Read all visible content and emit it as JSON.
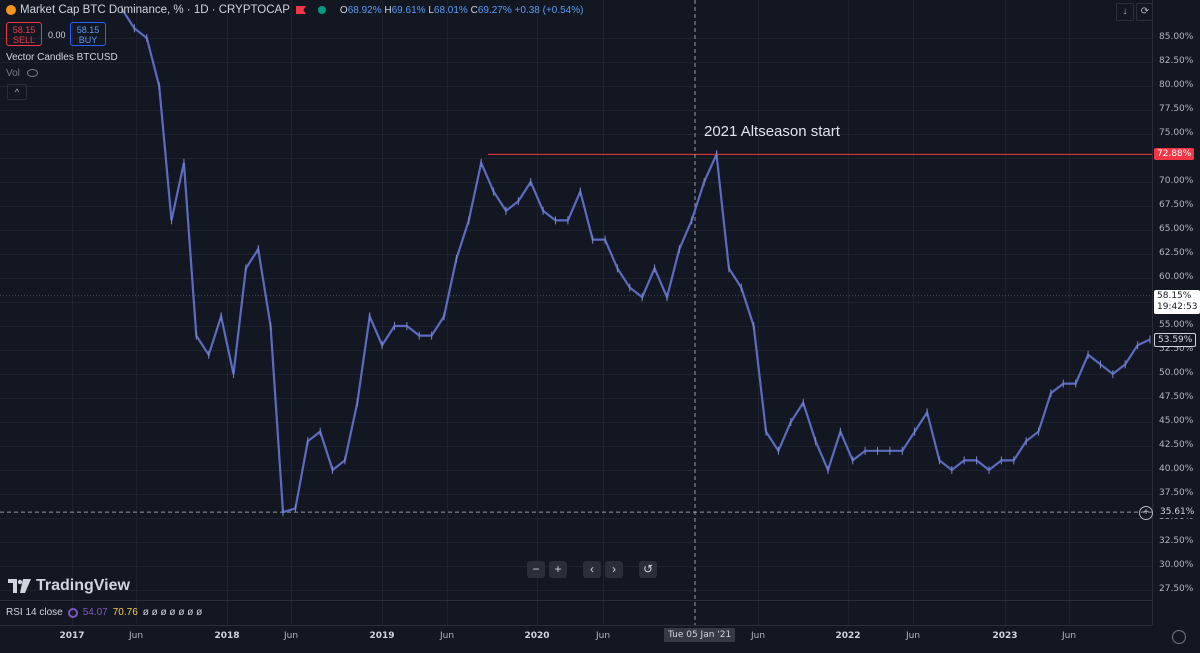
{
  "header": {
    "title": "Market Cap BTC Dominance, % · 1D · CRYPTOCAP",
    "ohlc": {
      "o_label": "O",
      "o_value": "68.92%",
      "h_label": "H",
      "h_value": "69.61%",
      "l_label": "L",
      "l_value": "68.01%",
      "c_label": "C",
      "c_value": "69.27%",
      "change": "+0.38 (+0.54%)"
    }
  },
  "trade": {
    "sell_price": "58.15",
    "sell_label": "SELL",
    "buy_price": "58.15",
    "buy_label": "BUY",
    "spread": "0.00"
  },
  "indicators": {
    "vector": "Vector Candles BTCUSD",
    "vol": "Vol",
    "collapse": "^"
  },
  "toolbar": {
    "down_icon": "arrow-down-icon",
    "refresh_icon": "refresh-icon",
    "scale_label": "%"
  },
  "price_axis": {
    "ticks": [
      "85.00%",
      "82.50%",
      "80.00%",
      "77.50%",
      "75.00%",
      "72.50%",
      "70.00%",
      "67.50%",
      "65.00%",
      "62.50%",
      "60.00%",
      "57.50%",
      "55.00%",
      "52.50%",
      "50.00%",
      "47.50%",
      "45.00%",
      "42.50%",
      "40.00%",
      "37.50%",
      "35.00%",
      "32.50%",
      "30.00%",
      "27.50%"
    ],
    "high_label": "72.88%",
    "current_price": "58.15%",
    "countdown": "19:42:53",
    "close_label": "53.59%",
    "crosshair_label": "35.61%"
  },
  "time_axis": {
    "ticks": [
      {
        "label": "2017",
        "bold": true
      },
      {
        "label": "Jun",
        "bold": false
      },
      {
        "label": "2018",
        "bold": true
      },
      {
        "label": "Jun",
        "bold": false
      },
      {
        "label": "2019",
        "bold": true
      },
      {
        "label": "Jun",
        "bold": false
      },
      {
        "label": "2020",
        "bold": true
      },
      {
        "label": "Jun",
        "bold": false
      },
      {
        "label": "Jun",
        "bold": false
      },
      {
        "label": "2022",
        "bold": true
      },
      {
        "label": "Jun",
        "bold": false
      },
      {
        "label": "2023",
        "bold": true
      },
      {
        "label": "Jun",
        "bold": false
      }
    ],
    "crosshair_date": "Tue 05 Jan '21"
  },
  "annotation": "2021 Altseason start",
  "navigation": {
    "zoom_out": "−",
    "zoom_in": "+",
    "scroll_left": "‹",
    "scroll_right": "›",
    "reset": "↺"
  },
  "brand": "TradingView",
  "rsi": {
    "label": "RSI 14 close",
    "value1": "54.07",
    "value2": "70.76",
    "na_values": "ø ø ø ø ø ø ø",
    "value1_color": "#7e57c2",
    "value2_color": "#f7c948"
  },
  "colors": {
    "background": "#131722",
    "line": "#5c6bc0",
    "high_line": "#f23645",
    "accent_blue": "#2962ff"
  },
  "chart_data": {
    "type": "line",
    "series": [
      {
        "x": [
          "2016-12",
          "2017-01",
          "2017-02",
          "2017-03",
          "2017-04",
          "2017-05",
          "2017-06",
          "2017-07",
          "2017-08",
          "2017-09",
          "2017-10",
          "2017-11",
          "2017-12",
          "2018-01",
          "2018-02",
          "2018-03",
          "2018-04",
          "2018-05",
          "2018-06",
          "2018-07",
          "2018-08",
          "2018-09",
          "2018-10",
          "2018-11",
          "2018-12",
          "2019-01",
          "2019-02",
          "2019-03",
          "2019-04",
          "2019-05",
          "2019-06",
          "2019-07",
          "2019-08",
          "2019-09",
          "2019-10",
          "2019-11",
          "2019-12",
          "2020-01",
          "2020-02",
          "2020-03",
          "2020-04",
          "2020-05",
          "2020-06",
          "2020-07",
          "2020-08",
          "2020-09",
          "2020-10",
          "2020-11",
          "2020-12",
          "2021-01",
          "2021-02",
          "2021-03",
          "2021-04",
          "2021-05",
          "2021-06",
          "2021-07",
          "2021-08",
          "2021-09",
          "2021-10",
          "2021-11",
          "2021-12",
          "2022-01",
          "2022-02",
          "2022-03",
          "2022-04",
          "2022-05",
          "2022-06",
          "2022-07",
          "2022-08",
          "2022-09",
          "2022-10",
          "2022-11",
          "2022-12",
          "2023-01",
          "2023-02",
          "2023-03",
          "2023-04",
          "2023-05",
          "2023-06",
          "2023-07",
          "2023-08",
          "2023-09",
          "2023-10",
          "2023-11"
        ],
        "values": [
          88,
          86,
          85,
          80,
          66,
          72,
          54,
          52,
          56,
          50,
          61,
          63,
          55,
          35.6,
          36,
          43,
          44,
          40,
          41,
          47,
          56,
          53,
          55,
          55,
          54,
          54,
          56,
          62,
          66,
          72,
          69,
          67,
          68,
          70,
          67,
          66,
          66,
          69,
          64,
          64,
          61,
          59,
          58,
          61,
          58,
          63,
          66,
          70,
          72.88,
          61,
          59,
          55,
          44,
          42,
          45,
          47,
          43,
          40,
          44,
          41,
          42,
          42,
          42,
          42,
          44,
          46,
          41,
          40,
          41,
          41,
          40,
          41,
          41,
          43,
          44,
          48,
          49,
          49,
          52,
          51,
          50,
          51,
          53,
          53.59
        ]
      }
    ],
    "high_line_value": 72.88,
    "crosshair_value": 35.61,
    "ylim": [
      25.5,
      88.5
    ],
    "annotations": [
      "2021 Altseason start"
    ]
  }
}
